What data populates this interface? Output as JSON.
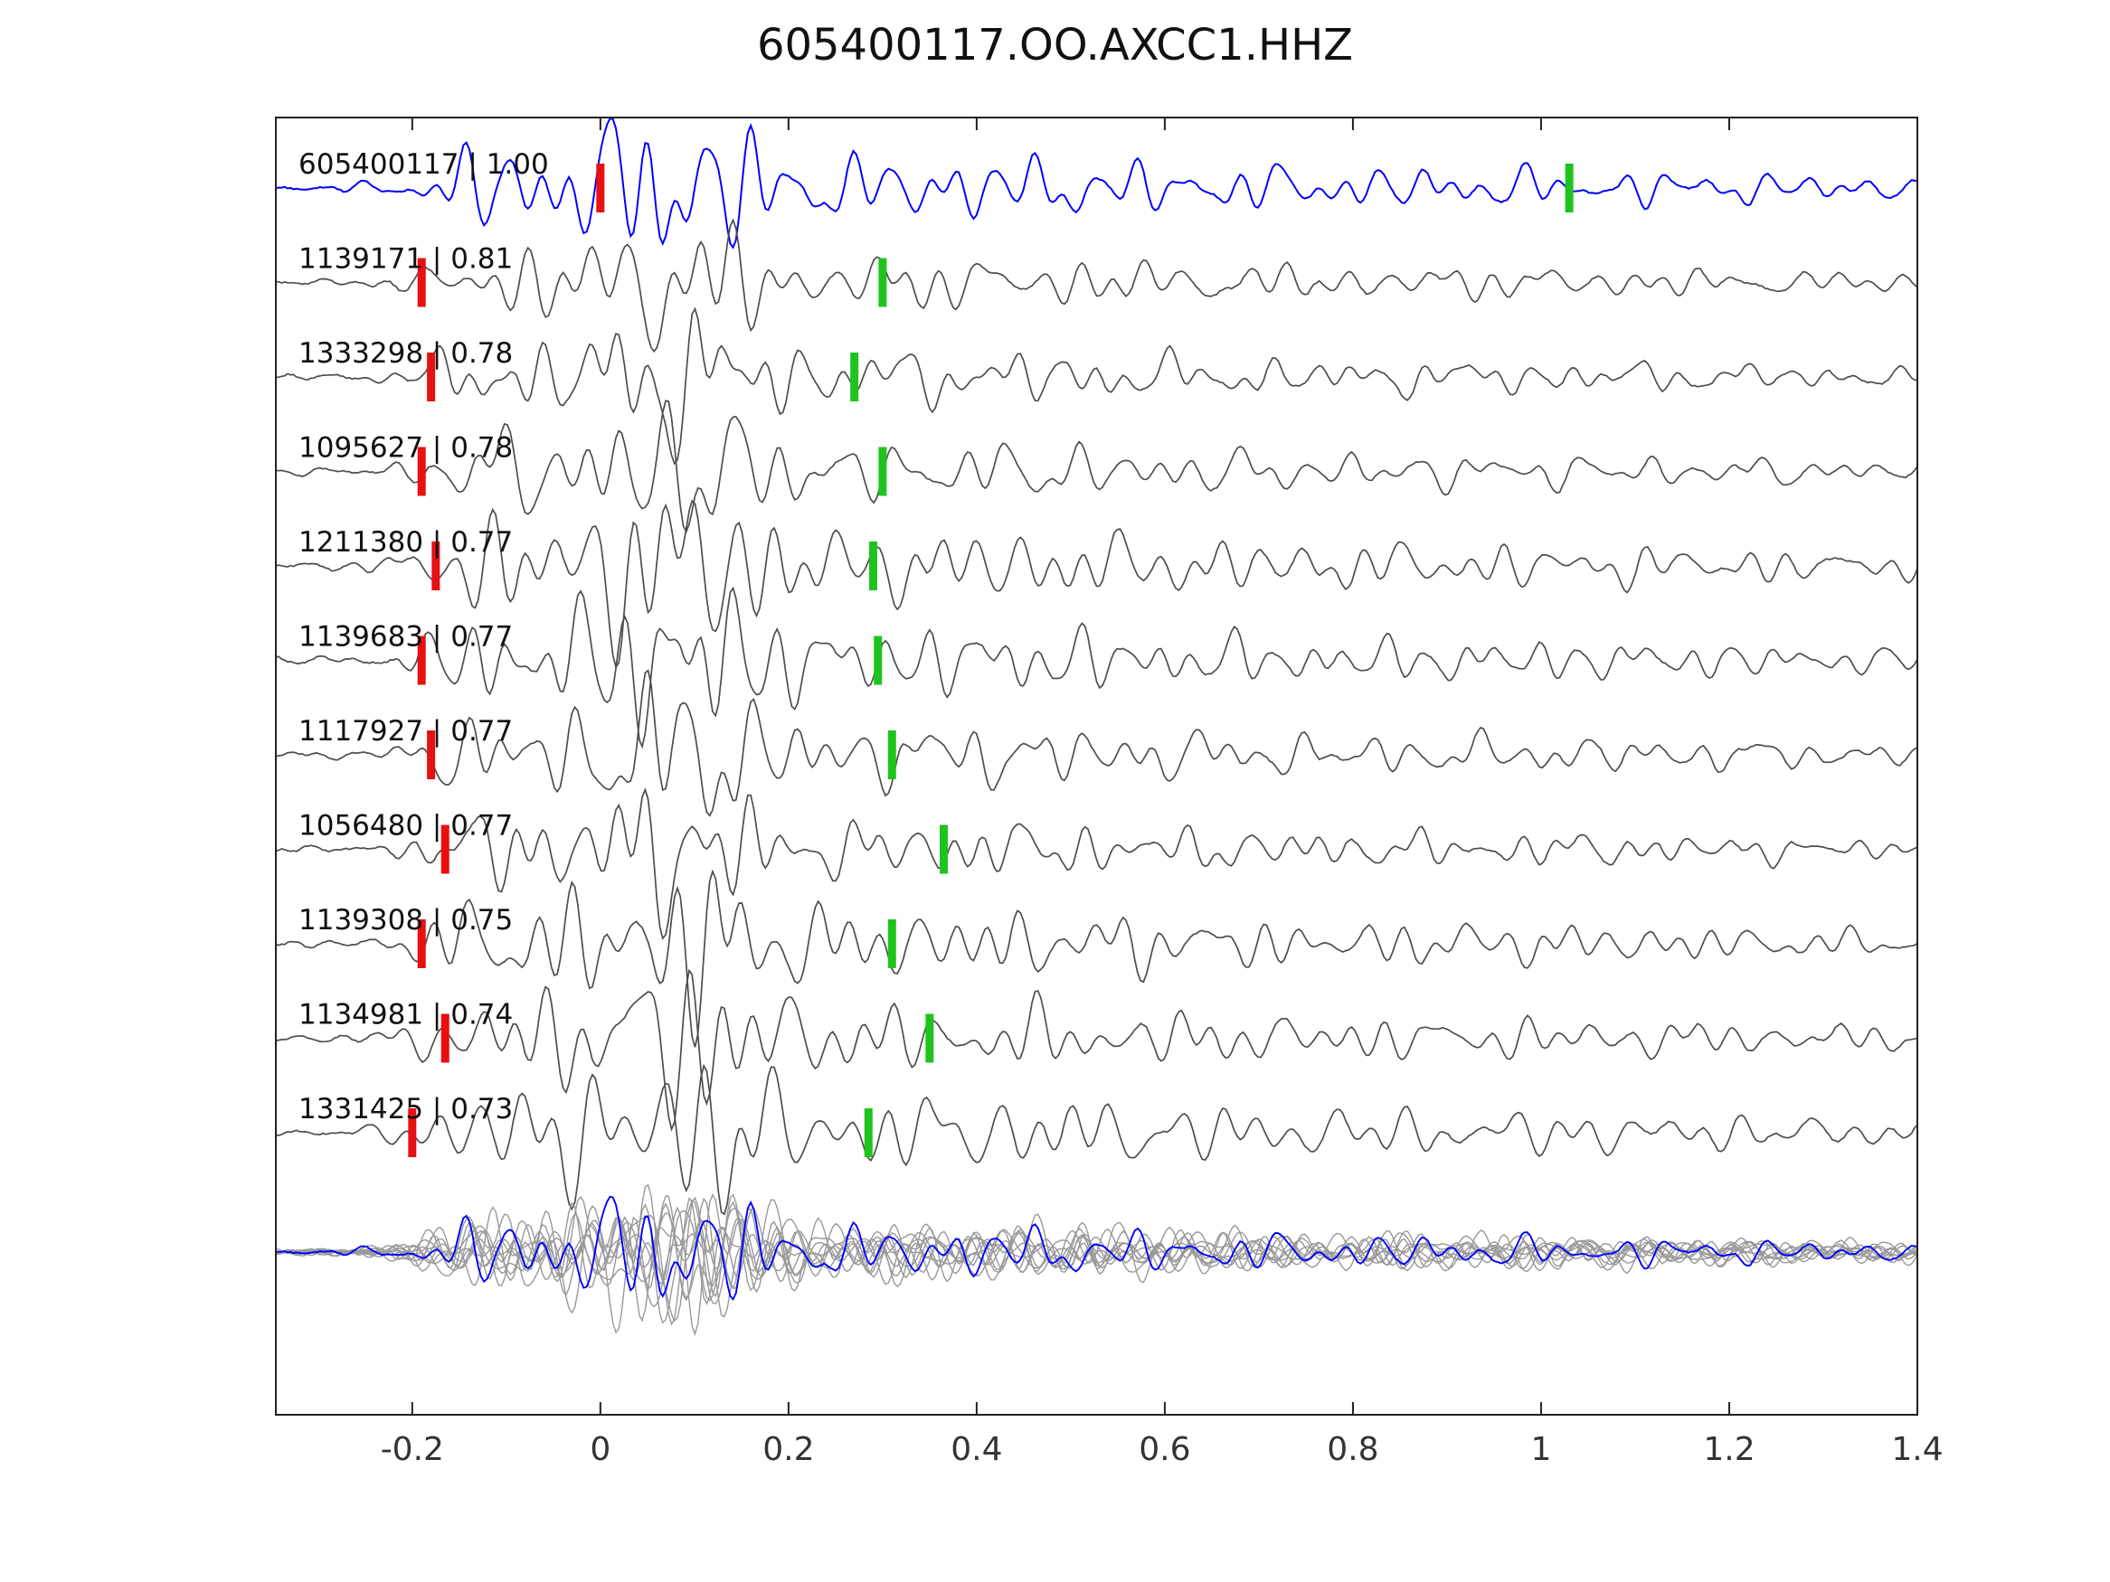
{
  "title": "605400117.OO.AXCC1.HHZ",
  "chart_data": {
    "type": "line",
    "title": "605400117.OO.AXCC1.HHZ",
    "xlabel": "",
    "ylabel": "",
    "xlim": [
      -0.345,
      1.4
    ],
    "x_ticks": [
      -0.2,
      0,
      0.2,
      0.4,
      0.6,
      0.8,
      1,
      1.2,
      1.4
    ],
    "x_tick_labels": [
      "-0.2",
      "0",
      "0.2",
      "0.4",
      "0.6",
      "0.8",
      "1",
      "1.2",
      "1.4"
    ],
    "grid": false,
    "legend": "none",
    "colors": {
      "template": "#0000ff",
      "trace": "#4d4d4d",
      "overlay": "#999999",
      "pick_red": "#e81010",
      "pick_green": "#1ec41e",
      "axis": "#222222",
      "tick_label": "#333333"
    },
    "traces": [
      {
        "id": "605400117",
        "correlation": "1.00",
        "label": "605400117 | 1.00",
        "is_template": true,
        "red_pick": 0.0,
        "green_pick": 1.03
      },
      {
        "id": "1139171",
        "correlation": "0.81",
        "label": "1139171 | 0.81",
        "is_template": false,
        "red_pick": -0.19,
        "green_pick": 0.3
      },
      {
        "id": "1333298",
        "correlation": "0.78",
        "label": "1333298 | 0.78",
        "is_template": false,
        "red_pick": -0.18,
        "green_pick": 0.27
      },
      {
        "id": "1095627",
        "correlation": "0.78",
        "label": "1095627 | 0.78",
        "is_template": false,
        "red_pick": -0.19,
        "green_pick": 0.3
      },
      {
        "id": "1211380",
        "correlation": "0.77",
        "label": "1211380 | 0.77",
        "is_template": false,
        "red_pick": -0.175,
        "green_pick": 0.29
      },
      {
        "id": "1139683",
        "correlation": "0.77",
        "label": "1139683 | 0.77",
        "is_template": false,
        "red_pick": -0.19,
        "green_pick": 0.295
      },
      {
        "id": "1117927",
        "correlation": "0.77",
        "label": "1117927 | 0.77",
        "is_template": false,
        "red_pick": -0.18,
        "green_pick": 0.31
      },
      {
        "id": "1056480",
        "correlation": "0.77",
        "label": "1056480 | 0.77",
        "is_template": false,
        "red_pick": -0.165,
        "green_pick": 0.365
      },
      {
        "id": "1139308",
        "correlation": "0.75",
        "label": "1139308 | 0.75",
        "is_template": false,
        "red_pick": -0.19,
        "green_pick": 0.31
      },
      {
        "id": "1134981",
        "correlation": "0.74",
        "label": "1134981 | 0.74",
        "is_template": false,
        "red_pick": -0.165,
        "green_pick": 0.35
      },
      {
        "id": "1331425",
        "correlation": "0.73",
        "label": "1331425 | 0.73",
        "is_template": false,
        "red_pick": -0.2,
        "green_pick": 0.285
      }
    ],
    "overlay_row": {
      "description": "all aligned traces overplotted in gray with blue template on top"
    }
  }
}
